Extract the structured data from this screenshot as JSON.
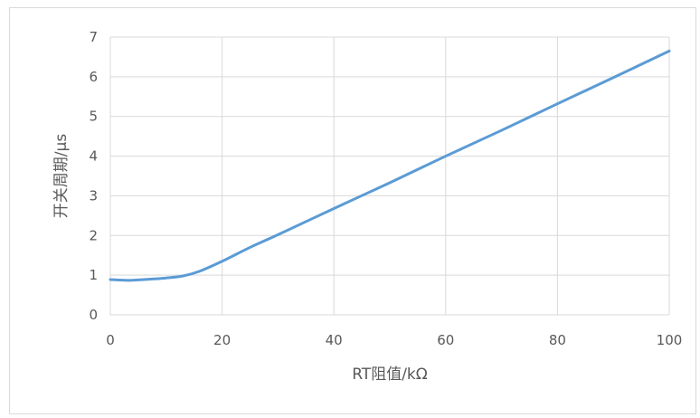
{
  "chart_data": {
    "type": "line",
    "title": "",
    "xlabel": "RT阻值/kΩ",
    "ylabel": "开关周期/µs",
    "xlim": [
      0,
      100
    ],
    "ylim": [
      0,
      7
    ],
    "x_ticks": [
      0,
      20,
      40,
      60,
      80,
      100
    ],
    "y_ticks": [
      0,
      1,
      2,
      3,
      4,
      5,
      6,
      7
    ],
    "grid": true,
    "legend": "none",
    "series": [
      {
        "color": "#5b9bd5",
        "x": [
          0,
          3,
          6,
          10,
          13,
          16,
          20,
          25,
          30,
          40,
          50,
          60,
          70,
          80,
          90,
          100
        ],
        "y": [
          0.89,
          0.87,
          0.89,
          0.93,
          0.98,
          1.1,
          1.35,
          1.7,
          2.02,
          2.68,
          3.33,
          4.0,
          4.65,
          5.32,
          5.98,
          6.65
        ]
      }
    ]
  }
}
